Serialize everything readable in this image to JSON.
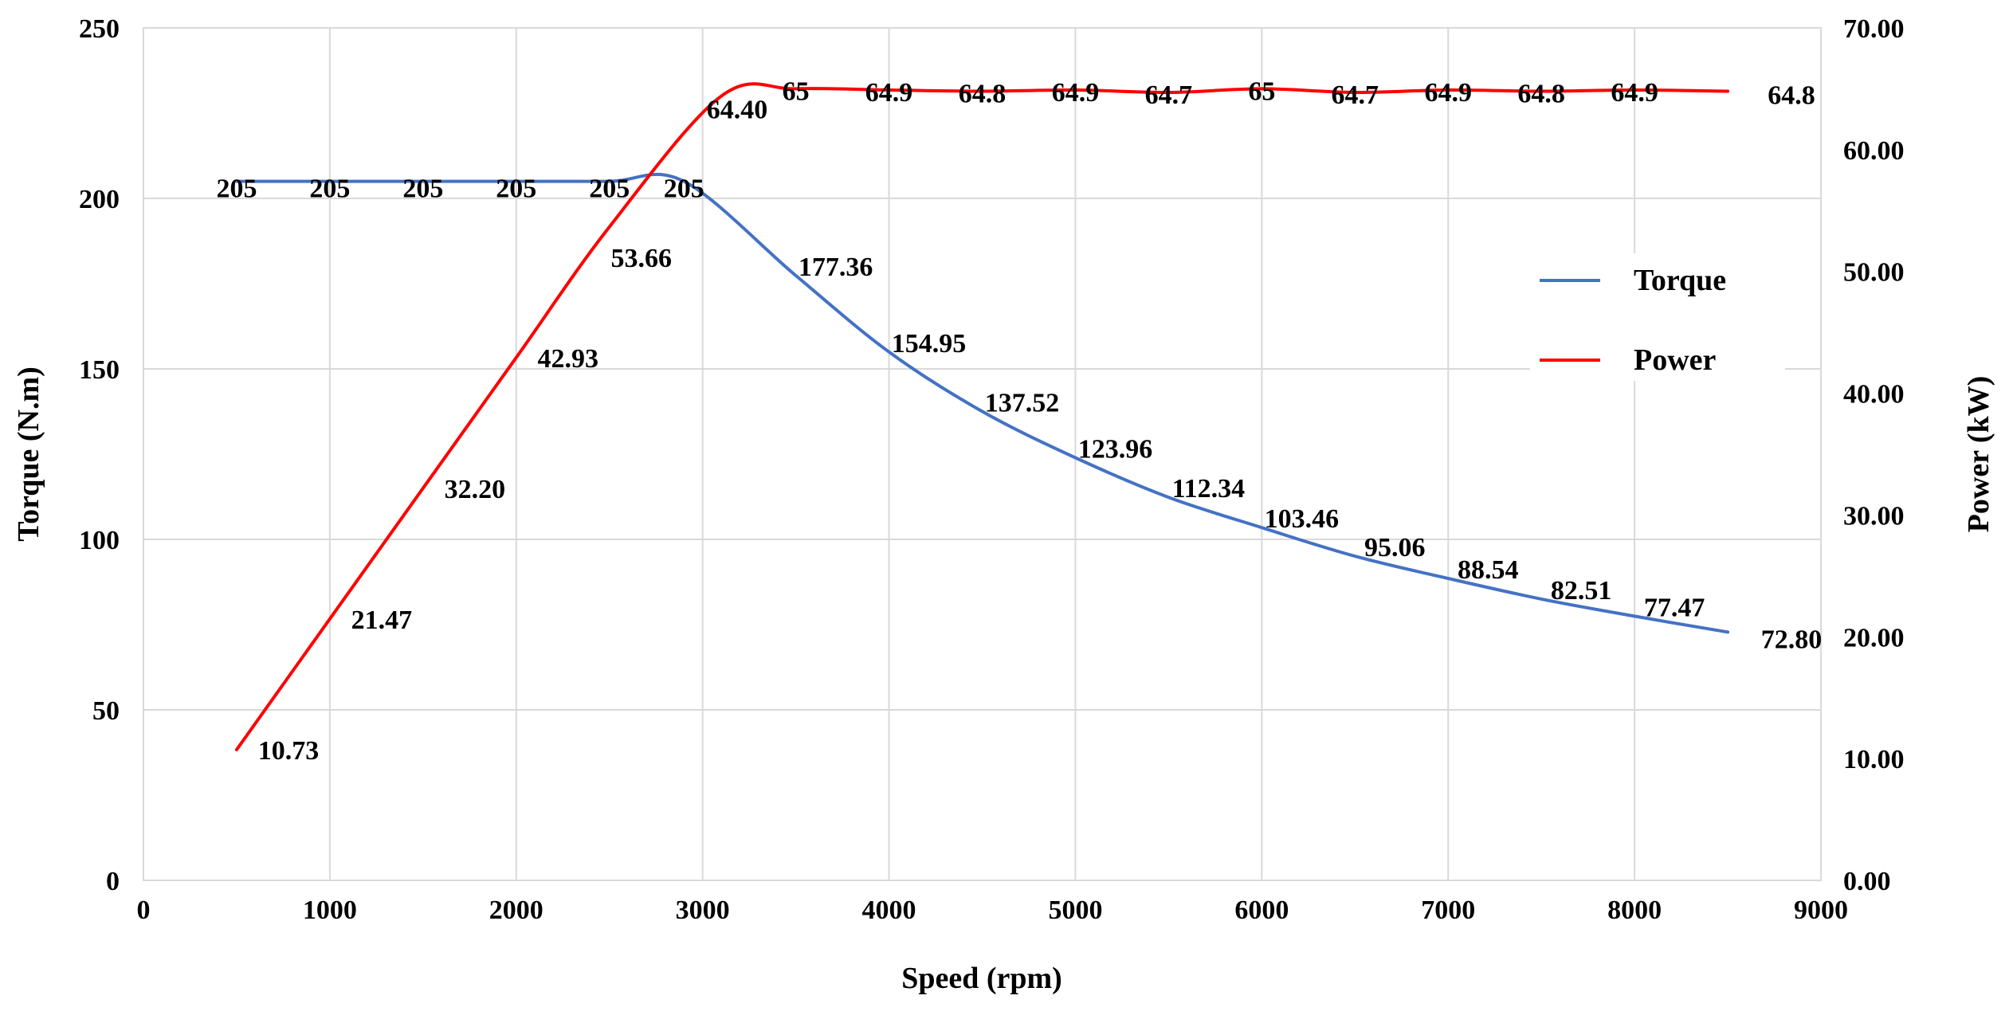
{
  "chart_data": {
    "type": "line",
    "title": "",
    "xlabel": "Speed (rpm)",
    "ylabel": "Torque (N.m)",
    "y2label": "Power (kW)",
    "xlim": [
      0,
      9000
    ],
    "ylim": [
      0,
      250
    ],
    "y2lim": [
      0,
      70
    ],
    "x_ticks": [
      "0",
      "1000",
      "2000",
      "3000",
      "4000",
      "5000",
      "6000",
      "7000",
      "8000",
      "9000"
    ],
    "y_ticks": [
      "0",
      "50",
      "100",
      "150",
      "200",
      "250"
    ],
    "y2_ticks": [
      "0.00",
      "10.00",
      "20.00",
      "30.00",
      "40.00",
      "50.00",
      "60.00",
      "70.00"
    ],
    "grid": true,
    "legend_position": "right",
    "series": [
      {
        "name": "Torque",
        "axis": "left",
        "color": "#4472C4",
        "x": [
          500,
          1000,
          1500,
          2000,
          2500,
          2900,
          3500,
          4000,
          4500,
          5000,
          5500,
          6000,
          6500,
          7000,
          7500,
          8000,
          8500
        ],
        "values": [
          205,
          205,
          205,
          205,
          205,
          205,
          177.36,
          154.95,
          137.52,
          123.96,
          112.34,
          103.46,
          95.06,
          88.54,
          82.51,
          77.47,
          72.8
        ],
        "labels": [
          "205",
          "205",
          "205",
          "205",
          "205",
          "205",
          "177.36",
          "154.95",
          "137.52",
          "123.96",
          "112.34",
          "103.46",
          "95.06",
          "88.54",
          "82.51",
          "77.47",
          "72.80"
        ]
      },
      {
        "name": "Power",
        "axis": "right",
        "color": "#FF0000",
        "x": [
          500,
          1000,
          1500,
          2000,
          2500,
          3100,
          3500,
          4000,
          4500,
          5000,
          5500,
          6000,
          6500,
          7000,
          7500,
          8000,
          8500
        ],
        "values": [
          10.73,
          21.47,
          32.2,
          42.93,
          53.66,
          64.4,
          65,
          64.9,
          64.8,
          64.9,
          64.7,
          65,
          64.7,
          64.9,
          64.8,
          64.9,
          64.8
        ],
        "labels": [
          "10.73",
          "21.47",
          "32.20",
          "42.93",
          "53.66",
          "64.40",
          "65",
          "64.9",
          "64.8",
          "64.9",
          "64.7",
          "65",
          "64.7",
          "64.9",
          "64.8",
          "64.9",
          "64.8"
        ]
      }
    ]
  }
}
